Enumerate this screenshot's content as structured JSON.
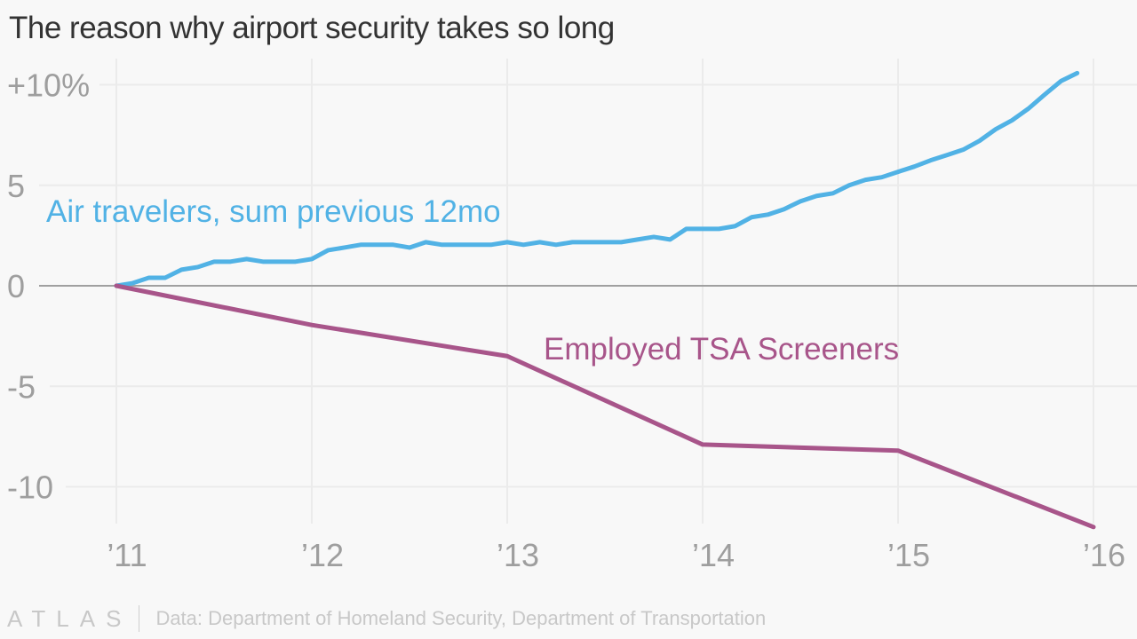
{
  "header": {
    "title": "The reason why airport security takes so long"
  },
  "footer": {
    "brand": "ATLAS",
    "source": "Data: Department of Homeland Security, Department of Transportation"
  },
  "colors": {
    "air_travelers": "#51b2e5",
    "tsa": "#a8558a",
    "axis_text": "#9e9e9e",
    "grid": "#ebebeb",
    "zero_line": "#a0a0a0",
    "title": "#333333"
  },
  "chart_data": {
    "type": "line",
    "title": "The reason why airport security takes so long",
    "xlabel": "",
    "ylabel": "",
    "ylim": [
      -12.5,
      11
    ],
    "xlim": [
      2011,
      2016
    ],
    "yticks": [
      10,
      5,
      0,
      -5,
      -10
    ],
    "ytick_labels": [
      "+10%",
      "5",
      "0",
      "-5",
      "-10"
    ],
    "xticks": [
      2011,
      2012,
      2013,
      2014,
      2015,
      2016
    ],
    "xtick_labels": [
      "’11",
      "’12",
      "’13",
      "’14",
      "’15",
      "’16"
    ],
    "grid": true,
    "legend": "inline-labels",
    "series": [
      {
        "name": "Air travelers, sum previous 12mo",
        "label": "Air travelers, sum previous 12mo",
        "x_start": 2011,
        "x_step_months": 1,
        "values": [
          0,
          0.13,
          0.4,
          0.4,
          0.8,
          0.93,
          1.2,
          1.2,
          1.33,
          1.2,
          1.2,
          1.2,
          1.33,
          1.77,
          1.9,
          2.04,
          2.04,
          2.04,
          1.9,
          2.17,
          2.04,
          2.04,
          2.04,
          2.04,
          2.17,
          2.04,
          2.17,
          2.04,
          2.17,
          2.17,
          2.17,
          2.17,
          2.3,
          2.43,
          2.3,
          2.83,
          2.83,
          2.83,
          2.97,
          3.41,
          3.54,
          3.81,
          4.2,
          4.47,
          4.6,
          5.0,
          5.27,
          5.4,
          5.67,
          5.93,
          6.24,
          6.5,
          6.77,
          7.21,
          7.79,
          8.23,
          8.81,
          9.51,
          10.18,
          10.58
        ]
      },
      {
        "name": "Employed TSA Screeners",
        "label": "Employed TSA Screeners",
        "x": [
          2011,
          2012,
          2013,
          2014,
          2015,
          2016
        ],
        "values": [
          0,
          -1.95,
          -3.5,
          -7.9,
          -8.2,
          -12.0
        ]
      }
    ]
  }
}
